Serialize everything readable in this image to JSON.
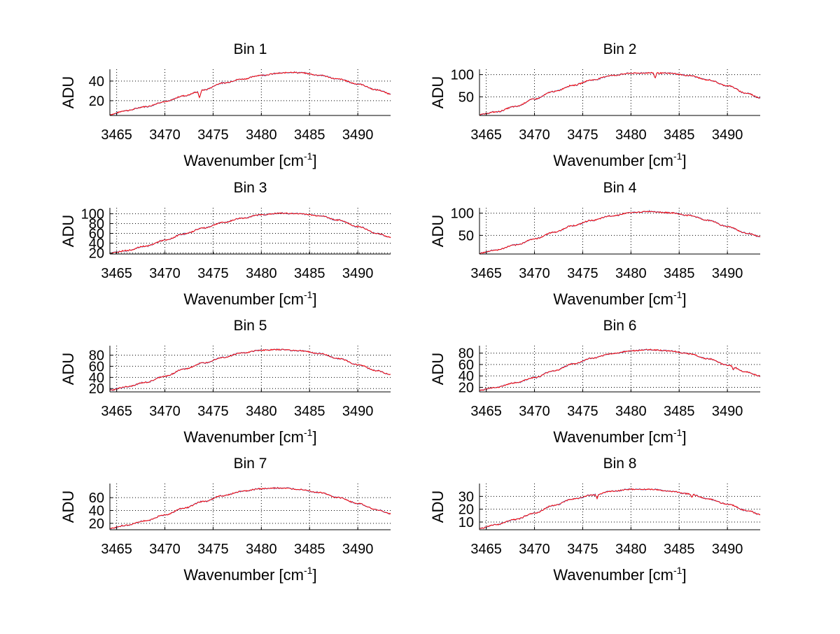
{
  "colors": {
    "background": "#ffffff",
    "axes": "#000000",
    "grid": "#000000",
    "series_red": "#ff0000",
    "series_blue": "#1e90ff",
    "series_orange": "#ff8c00"
  },
  "chart_data": [
    {
      "type": "line",
      "title": "Bin 1",
      "xlabel": "Wavenumber [cm",
      "xlabel_sup": "-1",
      "xlabel_end": "]",
      "ylabel": "ADU",
      "xlim": [
        3464.3,
        3493.4
      ],
      "ylim": [
        5,
        52
      ],
      "xticks": [
        3465,
        3470,
        3475,
        3480,
        3485,
        3490
      ],
      "yticks": [
        20,
        40
      ],
      "grid": true,
      "x": [
        3464.3,
        3466,
        3468,
        3470,
        3472,
        3473.5,
        3474,
        3476,
        3478,
        3480,
        3482,
        3483,
        3484,
        3486,
        3488,
        3490,
        3492,
        3493.4
      ],
      "values": [
        6,
        10,
        14,
        19,
        25,
        29,
        31,
        38,
        42,
        46,
        48,
        49,
        48.5,
        46,
        42,
        37,
        31,
        27
      ],
      "dips": [
        {
          "x": 3473.6,
          "depth": 7
        }
      ]
    },
    {
      "type": "line",
      "title": "Bin 2",
      "xlabel": "Wavenumber [cm",
      "xlabel_sup": "-1",
      "xlabel_end": "]",
      "ylabel": "ADU",
      "xlim": [
        3464.3,
        3493.4
      ],
      "ylim": [
        8,
        112
      ],
      "xticks": [
        3465,
        3470,
        3475,
        3480,
        3485,
        3490
      ],
      "yticks": [
        50,
        100
      ],
      "grid": true,
      "x": [
        3464.3,
        3466,
        3468,
        3470,
        3472,
        3474,
        3476,
        3478,
        3480,
        3482,
        3484,
        3486,
        3488,
        3490,
        3492,
        3493.4
      ],
      "values": [
        10,
        16,
        28,
        45,
        62,
        76,
        88,
        98,
        103,
        104,
        103,
        98,
        88,
        75,
        58,
        48
      ],
      "dips": [
        {
          "x": 3482.5,
          "depth": 12
        }
      ]
    },
    {
      "type": "line",
      "title": "Bin 3",
      "xlabel": "Wavenumber [cm",
      "xlabel_sup": "-1",
      "xlabel_end": "]",
      "ylabel": "ADU",
      "xlim": [
        3464.3,
        3493.4
      ],
      "ylim": [
        18,
        112
      ],
      "xticks": [
        3465,
        3470,
        3475,
        3480,
        3485,
        3490
      ],
      "yticks": [
        20,
        40,
        60,
        80,
        100
      ],
      "grid": true,
      "x": [
        3464.3,
        3466,
        3468,
        3470,
        3472,
        3474,
        3476,
        3478,
        3480,
        3482,
        3484,
        3486,
        3488,
        3490,
        3492,
        3493.4
      ],
      "values": [
        20,
        25,
        34,
        46,
        59,
        71,
        82,
        91,
        98,
        101,
        100,
        96,
        87,
        74,
        60,
        52
      ],
      "dips": []
    },
    {
      "type": "line",
      "title": "Bin 4",
      "xlabel": "Wavenumber [cm",
      "xlabel_sup": "-1",
      "xlabel_end": "]",
      "ylabel": "ADU",
      "xlim": [
        3464.3,
        3493.4
      ],
      "ylim": [
        8,
        112
      ],
      "xticks": [
        3465,
        3470,
        3475,
        3480,
        3485,
        3490
      ],
      "yticks": [
        50,
        100
      ],
      "grid": true,
      "x": [
        3464.3,
        3466,
        3468,
        3470,
        3472,
        3474,
        3476,
        3478,
        3480,
        3482,
        3484,
        3486,
        3488,
        3490,
        3492,
        3493.4
      ],
      "values": [
        10,
        17,
        28,
        42,
        57,
        72,
        84,
        94,
        101,
        104,
        101,
        95,
        84,
        70,
        55,
        47
      ],
      "dips": []
    },
    {
      "type": "line",
      "title": "Bin 5",
      "xlabel": "Wavenumber [cm",
      "xlabel_sup": "-1",
      "xlabel_end": "]",
      "ylabel": "ADU",
      "xlim": [
        3464.3,
        3493.4
      ],
      "ylim": [
        14,
        97
      ],
      "xticks": [
        3465,
        3470,
        3475,
        3480,
        3485,
        3490
      ],
      "yticks": [
        20,
        40,
        60,
        80
      ],
      "grid": true,
      "x": [
        3464.3,
        3466,
        3468,
        3470,
        3472,
        3474,
        3476,
        3478,
        3480,
        3482,
        3484,
        3486,
        3488,
        3490,
        3492,
        3493.4
      ],
      "values": [
        17,
        23,
        31,
        42,
        55,
        66,
        76,
        84,
        89,
        90,
        88,
        83,
        74,
        63,
        52,
        45
      ],
      "dips": []
    },
    {
      "type": "line",
      "title": "Bin 6",
      "xlabel": "Wavenumber [cm",
      "xlabel_sup": "-1",
      "xlabel_end": "]",
      "ylabel": "ADU",
      "xlim": [
        3464.3,
        3493.4
      ],
      "ylim": [
        12,
        93
      ],
      "xticks": [
        3465,
        3470,
        3475,
        3480,
        3485,
        3490
      ],
      "yticks": [
        20,
        40,
        60,
        80
      ],
      "grid": true,
      "x": [
        3464.3,
        3466,
        3468,
        3470,
        3472,
        3474,
        3476,
        3478,
        3480,
        3482,
        3484,
        3486,
        3488,
        3490,
        3492,
        3493.4
      ],
      "values": [
        15,
        20,
        28,
        37,
        49,
        61,
        71,
        79,
        84,
        86,
        84,
        79,
        70,
        59,
        47,
        40
      ],
      "dips": [
        {
          "x": 3490.6,
          "depth": 6
        }
      ]
    },
    {
      "type": "line",
      "title": "Bin 7",
      "xlabel": "Wavenumber [cm",
      "xlabel_sup": "-1",
      "xlabel_end": "]",
      "ylabel": "ADU",
      "xlim": [
        3464.3,
        3493.4
      ],
      "ylim": [
        10,
        82
      ],
      "xticks": [
        3465,
        3470,
        3475,
        3480,
        3485,
        3490
      ],
      "yticks": [
        20,
        40,
        60
      ],
      "grid": true,
      "x": [
        3464.3,
        3466,
        3468,
        3470,
        3472,
        3474,
        3476,
        3478,
        3480,
        3482,
        3484,
        3486,
        3488,
        3490,
        3492,
        3493.4
      ],
      "values": [
        12,
        17,
        24,
        33,
        44,
        54,
        63,
        70,
        74,
        75,
        73,
        68,
        60,
        51,
        41,
        35
      ],
      "dips": []
    },
    {
      "type": "line",
      "title": "Bin 8",
      "xlabel": "Wavenumber [cm",
      "xlabel_sup": "-1",
      "xlabel_end": "]",
      "ylabel": "ADU",
      "xlim": [
        3464.3,
        3493.4
      ],
      "ylim": [
        4,
        40
      ],
      "xticks": [
        3465,
        3470,
        3475,
        3480,
        3485,
        3490
      ],
      "yticks": [
        10,
        20,
        30
      ],
      "grid": true,
      "x": [
        3464.3,
        3466,
        3468,
        3470,
        3472,
        3474,
        3476,
        3478,
        3480,
        3482,
        3484,
        3486,
        3488,
        3490,
        3492,
        3493.4
      ],
      "values": [
        5,
        8,
        12,
        17,
        23,
        28,
        31,
        34,
        35.5,
        35.5,
        34,
        32,
        28,
        24,
        19,
        16
      ],
      "dips": [
        {
          "x": 3476.5,
          "depth": 3
        },
        {
          "x": 3486.3,
          "depth": 3
        }
      ]
    }
  ]
}
